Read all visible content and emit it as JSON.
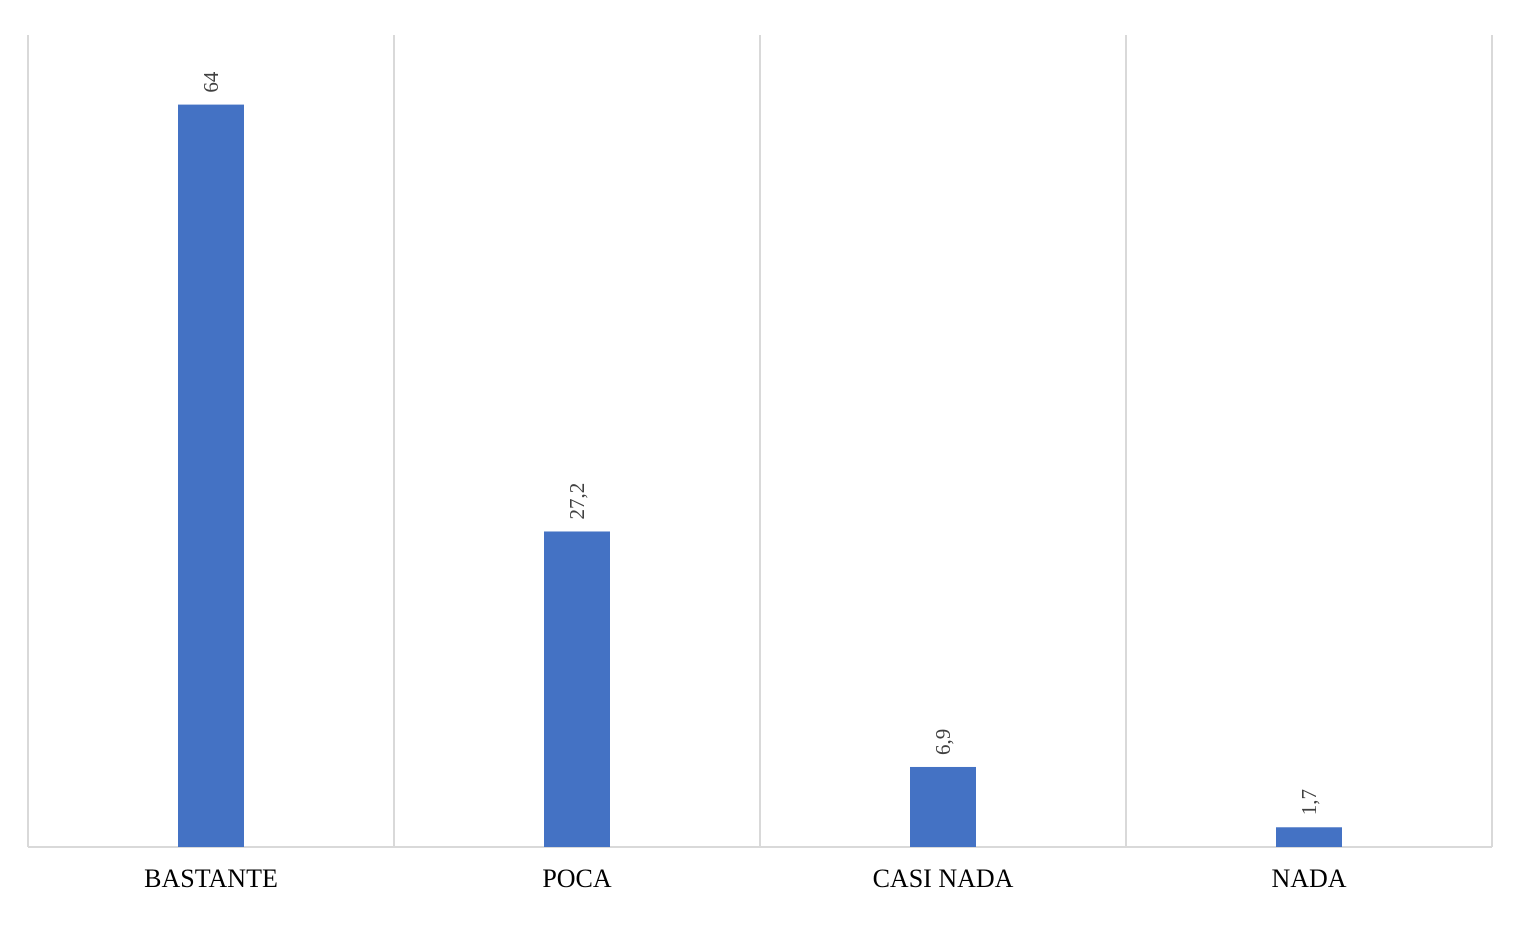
{
  "chart_data": {
    "type": "bar",
    "categories": [
      "BASTANTE",
      "POCA",
      "CASI NADA",
      "NADA"
    ],
    "values": [
      64,
      27.2,
      6.9,
      1.7
    ],
    "value_labels": [
      "64",
      "27,2",
      "6,9",
      "1,7"
    ],
    "color": "#4472c4",
    "ylim": [
      0,
      70
    ]
  }
}
